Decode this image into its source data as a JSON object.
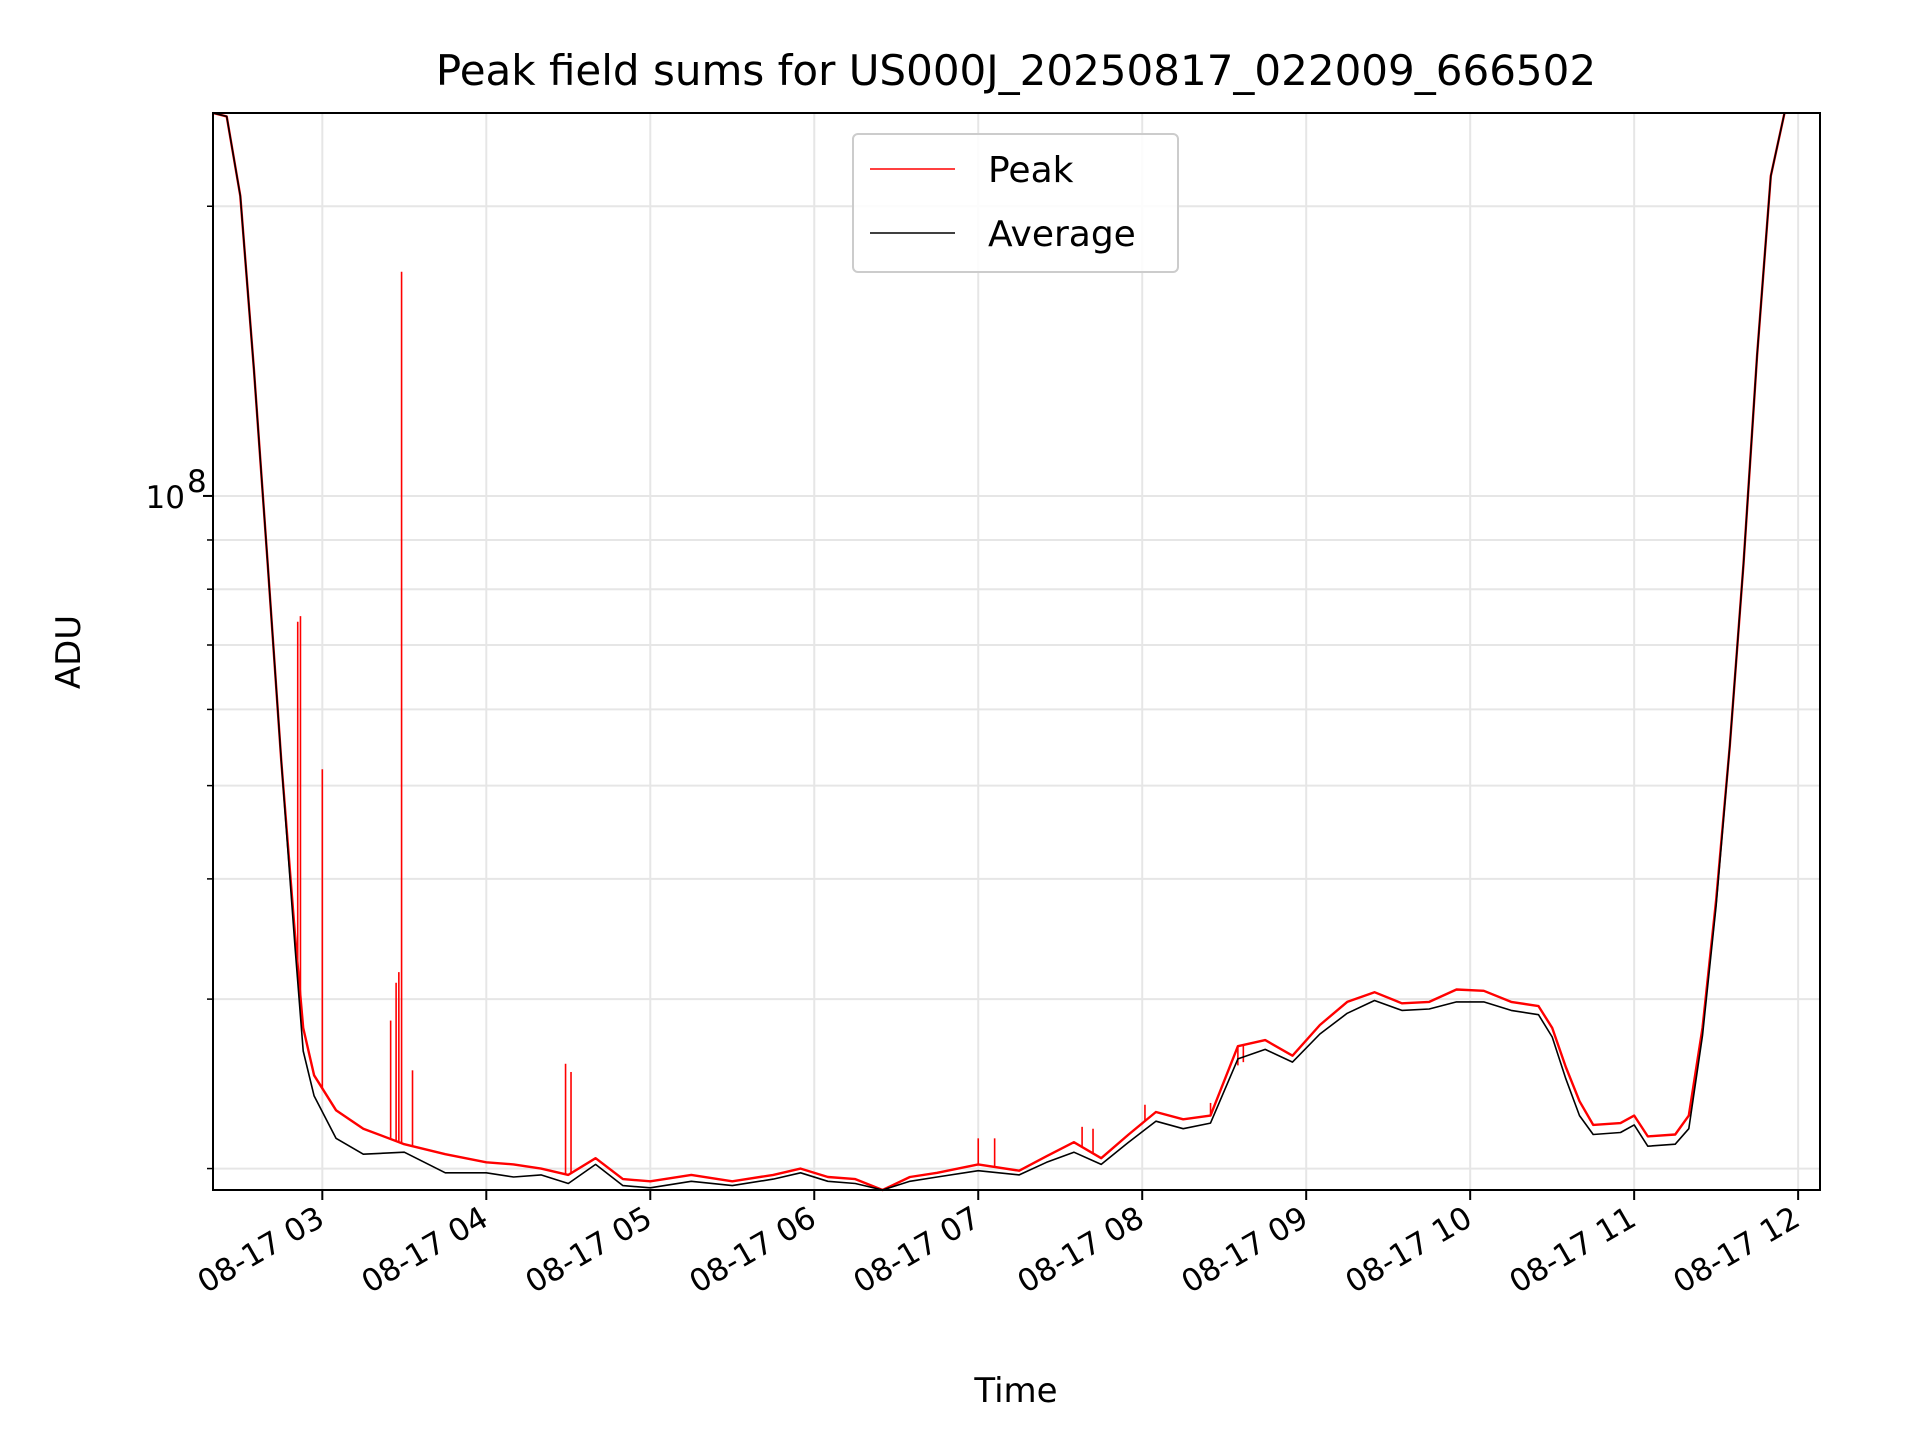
{
  "chart_data": {
    "type": "line",
    "title": "Peak field sums for US000J_20250817_022009_666502",
    "xlabel": "Time",
    "ylabel": "ADU",
    "yscale": "log",
    "xlim": [
      "08-17 02:20",
      "08-17 12:00"
    ],
    "ylim": [
      19000000,
      250000000
    ],
    "grid": true,
    "legend_position": "upper center",
    "x_tick_labels": [
      "08-17 03",
      "08-17 04",
      "08-17 05",
      "08-17 06",
      "08-17 07",
      "08-17 08",
      "08-17 09",
      "08-17 10",
      "08-17 11",
      "08-17 12"
    ],
    "y_tick_major": [
      {
        "value": 100000000,
        "label": "10",
        "exponent": "8"
      }
    ],
    "y_tick_minor": [
      20000000,
      30000000,
      40000000,
      50000000,
      60000000,
      70000000,
      80000000,
      90000000,
      200000000
    ],
    "series": [
      {
        "name": "Peak",
        "color": "#ff0000",
        "points": [
          [
            "08-17 02:20",
            250000000
          ],
          [
            "08-17 02:25",
            248000000
          ],
          [
            "08-17 02:30",
            205000000
          ],
          [
            "08-17 02:35",
            135000000
          ],
          [
            "08-17 02:40",
            85000000
          ],
          [
            "08-17 02:45",
            53000000
          ],
          [
            "08-17 02:50",
            35000000
          ],
          [
            "08-17 02:53",
            28000000
          ],
          [
            "08-17 02:57",
            25000000
          ],
          [
            "08-17 03:05",
            23000000
          ],
          [
            "08-17 03:15",
            22000000
          ],
          [
            "08-17 03:30",
            21200000
          ],
          [
            "08-17 03:45",
            20700000
          ],
          [
            "08-17 04:00",
            20300000
          ],
          [
            "08-17 04:10",
            20200000
          ],
          [
            "08-17 04:20",
            20000000
          ],
          [
            "08-17 04:30",
            19700000
          ],
          [
            "08-17 04:40",
            20500000
          ],
          [
            "08-17 04:50",
            19500000
          ],
          [
            "08-17 05:00",
            19400000
          ],
          [
            "08-17 05:15",
            19700000
          ],
          [
            "08-17 05:30",
            19400000
          ],
          [
            "08-17 05:45",
            19700000
          ],
          [
            "08-17 05:55",
            20000000
          ],
          [
            "08-17 06:05",
            19600000
          ],
          [
            "08-17 06:15",
            19500000
          ],
          [
            "08-17 06:25",
            19000000
          ],
          [
            "08-17 06:35",
            19600000
          ],
          [
            "08-17 06:45",
            19800000
          ],
          [
            "08-17 07:00",
            20200000
          ],
          [
            "08-17 07:15",
            19900000
          ],
          [
            "08-17 07:25",
            20600000
          ],
          [
            "08-17 07:35",
            21300000
          ],
          [
            "08-17 07:45",
            20500000
          ],
          [
            "08-17 07:55",
            21700000
          ],
          [
            "08-17 08:05",
            22900000
          ],
          [
            "08-17 08:15",
            22500000
          ],
          [
            "08-17 08:25",
            22700000
          ],
          [
            "08-17 08:35",
            26800000
          ],
          [
            "08-17 08:45",
            27200000
          ],
          [
            "08-17 08:55",
            26200000
          ],
          [
            "08-17 09:05",
            28200000
          ],
          [
            "08-17 09:15",
            29800000
          ],
          [
            "08-17 09:25",
            30500000
          ],
          [
            "08-17 09:35",
            29700000
          ],
          [
            "08-17 09:45",
            29800000
          ],
          [
            "08-17 09:55",
            30700000
          ],
          [
            "08-17 10:05",
            30600000
          ],
          [
            "08-17 10:15",
            29800000
          ],
          [
            "08-17 10:25",
            29500000
          ],
          [
            "08-17 10:30",
            28000000
          ],
          [
            "08-17 10:35",
            25500000
          ],
          [
            "08-17 10:40",
            23500000
          ],
          [
            "08-17 10:45",
            22200000
          ],
          [
            "08-17 10:55",
            22300000
          ],
          [
            "08-17 11:00",
            22700000
          ],
          [
            "08-17 11:05",
            21600000
          ],
          [
            "08-17 11:15",
            21700000
          ],
          [
            "08-17 11:20",
            22700000
          ],
          [
            "08-17 11:25",
            28000000
          ],
          [
            "08-17 11:30",
            38000000
          ],
          [
            "08-17 11:35",
            55000000
          ],
          [
            "08-17 11:40",
            85000000
          ],
          [
            "08-17 11:45",
            140000000
          ],
          [
            "08-17 11:50",
            215000000
          ],
          [
            "08-17 11:55",
            250000000
          ]
        ],
        "spikes": [
          [
            "08-17 02:51",
            74000000
          ],
          [
            "08-17 02:52",
            75000000
          ],
          [
            "08-17 03:00",
            52000000
          ],
          [
            "08-17 03:25",
            28500000
          ],
          [
            "08-17 03:27",
            31200000
          ],
          [
            "08-17 03:28",
            32000000
          ],
          [
            "08-17 03:29",
            171000000
          ],
          [
            "08-17 03:33",
            25300000
          ],
          [
            "08-17 04:29",
            25700000
          ],
          [
            "08-17 04:31",
            25200000
          ],
          [
            "08-17 07:00",
            21500000
          ],
          [
            "08-17 07:06",
            21500000
          ],
          [
            "08-17 07:38",
            22100000
          ],
          [
            "08-17 07:42",
            22000000
          ],
          [
            "08-17 08:01",
            23300000
          ],
          [
            "08-17 08:25",
            23400000
          ],
          [
            "08-17 08:35",
            25600000
          ],
          [
            "08-17 08:37",
            25800000
          ]
        ]
      },
      {
        "name": "Average",
        "color": "#000000",
        "points": [
          [
            "08-17 02:20",
            250000000
          ],
          [
            "08-17 02:25",
            248000000
          ],
          [
            "08-17 02:30",
            205000000
          ],
          [
            "08-17 02:35",
            135000000
          ],
          [
            "08-17 02:40",
            85000000
          ],
          [
            "08-17 02:45",
            53000000
          ],
          [
            "08-17 02:50",
            34000000
          ],
          [
            "08-17 02:53",
            26500000
          ],
          [
            "08-17 02:57",
            23800000
          ],
          [
            "08-17 03:05",
            21500000
          ],
          [
            "08-17 03:15",
            20700000
          ],
          [
            "08-17 03:30",
            20800000
          ],
          [
            "08-17 03:45",
            19800000
          ],
          [
            "08-17 04:00",
            19800000
          ],
          [
            "08-17 04:10",
            19600000
          ],
          [
            "08-17 04:20",
            19700000
          ],
          [
            "08-17 04:30",
            19300000
          ],
          [
            "08-17 04:40",
            20200000
          ],
          [
            "08-17 04:50",
            19200000
          ],
          [
            "08-17 05:00",
            19100000
          ],
          [
            "08-17 05:15",
            19400000
          ],
          [
            "08-17 05:30",
            19200000
          ],
          [
            "08-17 05:45",
            19500000
          ],
          [
            "08-17 05:55",
            19800000
          ],
          [
            "08-17 06:05",
            19400000
          ],
          [
            "08-17 06:15",
            19300000
          ],
          [
            "08-17 06:25",
            18800000
          ],
          [
            "08-17 06:35",
            19400000
          ],
          [
            "08-17 06:45",
            19600000
          ],
          [
            "08-17 07:00",
            19900000
          ],
          [
            "08-17 07:15",
            19700000
          ],
          [
            "08-17 07:25",
            20300000
          ],
          [
            "08-17 07:35",
            20800000
          ],
          [
            "08-17 07:45",
            20200000
          ],
          [
            "08-17 07:55",
            21300000
          ],
          [
            "08-17 08:05",
            22400000
          ],
          [
            "08-17 08:15",
            22000000
          ],
          [
            "08-17 08:25",
            22300000
          ],
          [
            "08-17 08:35",
            26000000
          ],
          [
            "08-17 08:45",
            26600000
          ],
          [
            "08-17 08:55",
            25800000
          ],
          [
            "08-17 09:05",
            27600000
          ],
          [
            "08-17 09:15",
            29000000
          ],
          [
            "08-17 09:25",
            29900000
          ],
          [
            "08-17 09:35",
            29200000
          ],
          [
            "08-17 09:45",
            29300000
          ],
          [
            "08-17 09:55",
            29800000
          ],
          [
            "08-17 10:05",
            29800000
          ],
          [
            "08-17 10:15",
            29200000
          ],
          [
            "08-17 10:25",
            28900000
          ],
          [
            "08-17 10:30",
            27400000
          ],
          [
            "08-17 10:35",
            24800000
          ],
          [
            "08-17 10:40",
            22700000
          ],
          [
            "08-17 10:45",
            21700000
          ],
          [
            "08-17 10:55",
            21800000
          ],
          [
            "08-17 11:00",
            22200000
          ],
          [
            "08-17 11:05",
            21100000
          ],
          [
            "08-17 11:15",
            21200000
          ],
          [
            "08-17 11:20",
            22000000
          ],
          [
            "08-17 11:25",
            27500000
          ],
          [
            "08-17 11:30",
            37500000
          ],
          [
            "08-17 11:35",
            55000000
          ],
          [
            "08-17 11:40",
            85000000
          ],
          [
            "08-17 11:45",
            140000000
          ],
          [
            "08-17 11:50",
            215000000
          ],
          [
            "08-17 11:55",
            250000000
          ]
        ]
      }
    ]
  }
}
